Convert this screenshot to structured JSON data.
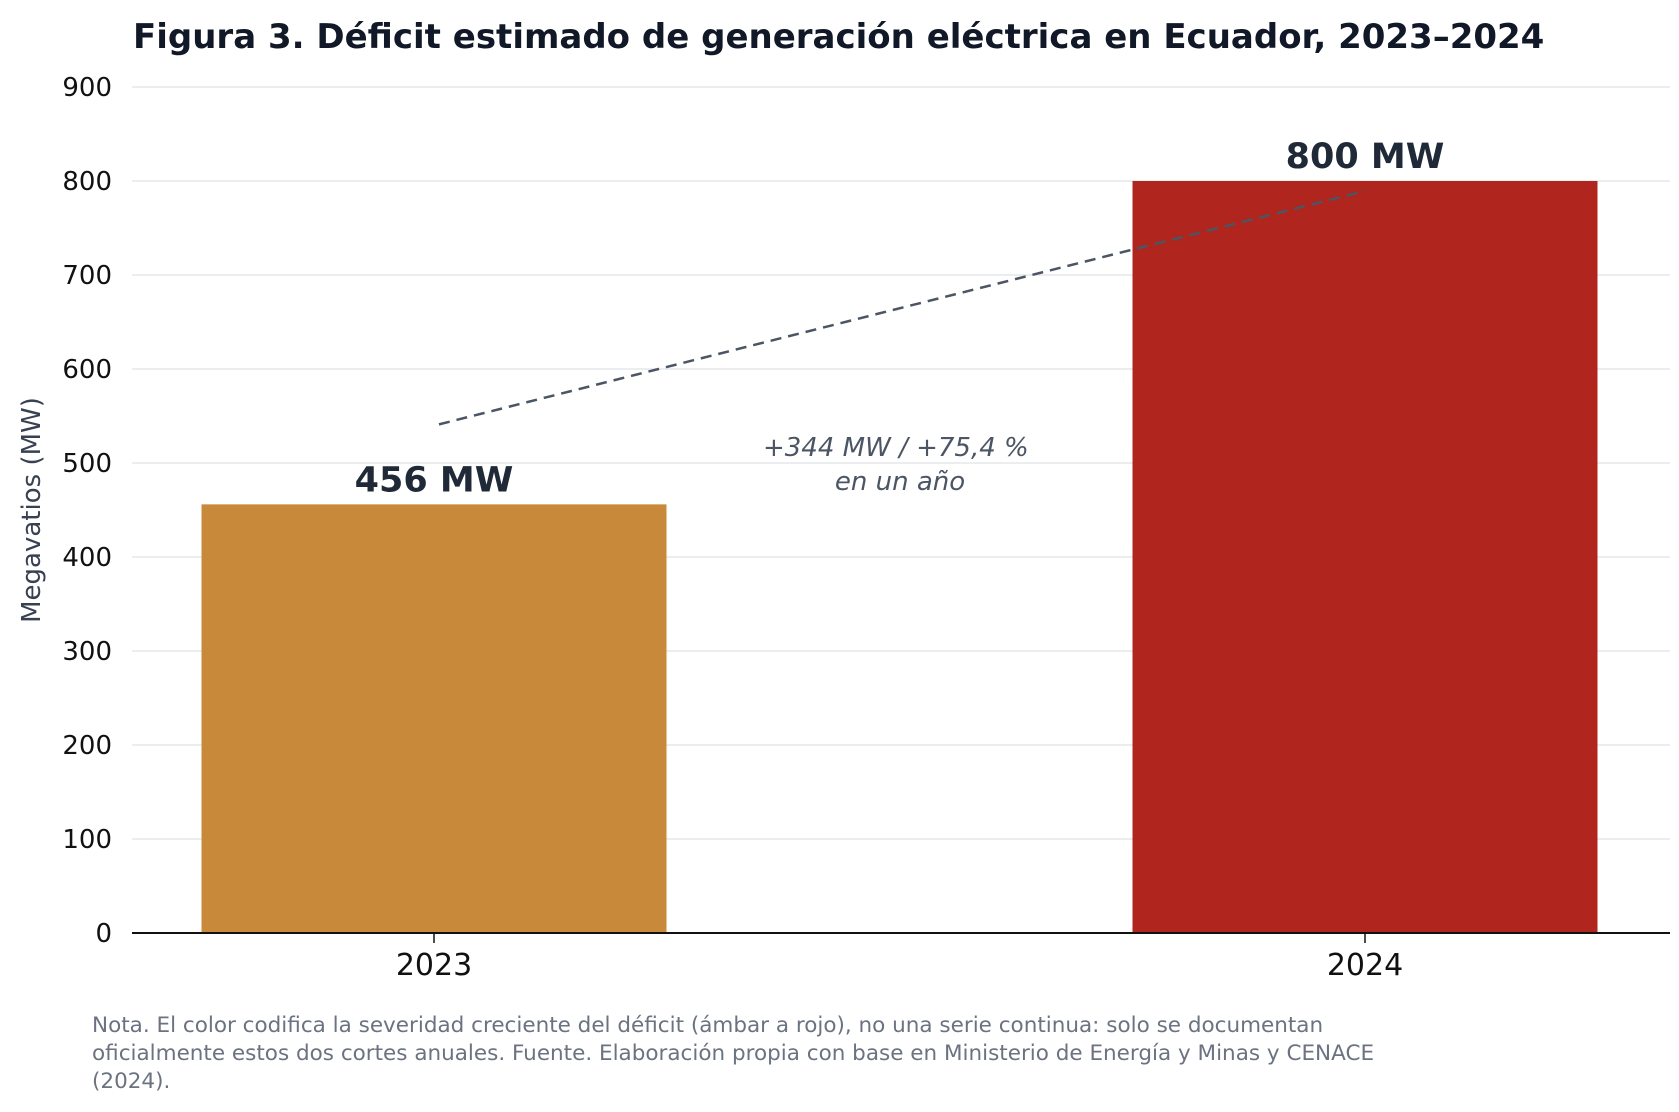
{
  "chart_data": {
    "type": "bar",
    "title": "Figura 3. Déficit estimado de generación eléctrica en Ecuador, 2023–2024",
    "xlabel": "",
    "ylabel": "Megavatios (MW)",
    "categories": [
      "2023",
      "2024"
    ],
    "values": [
      456,
      800
    ],
    "value_labels": [
      "456 MW",
      "800 MW"
    ],
    "bar_colors": [
      "#C8893A",
      "#B0251E"
    ],
    "ylim": [
      0,
      900
    ],
    "yticks": [
      0,
      100,
      200,
      300,
      400,
      500,
      600,
      700,
      800,
      900
    ],
    "ytick_labels": [
      "0",
      "100",
      "200",
      "300",
      "400",
      "500",
      "600",
      "700",
      "800",
      "900"
    ],
    "grid": true,
    "legend": "none",
    "annotation": {
      "lines": [
        "+344 MW / +75,4 %",
        "en un año"
      ],
      "style": "dashed trend line from 2023 bar to 2024 bar"
    }
  },
  "colors": {
    "title": "#111827",
    "axis_label": "#374151",
    "tick": "#111111",
    "grid": "#e5e7eb",
    "annotation": "#4b5563",
    "value_label": "#1f2937",
    "note": "#6b7280"
  },
  "note": "Nota. El color codifica la severidad creciente del déficit (ámbar a rojo), no una serie continua: solo se documentan oficialmente estos dos cortes anuales. Fuente. Elaboración propia con base en Ministerio de Energía y Minas y CENACE (2024)."
}
